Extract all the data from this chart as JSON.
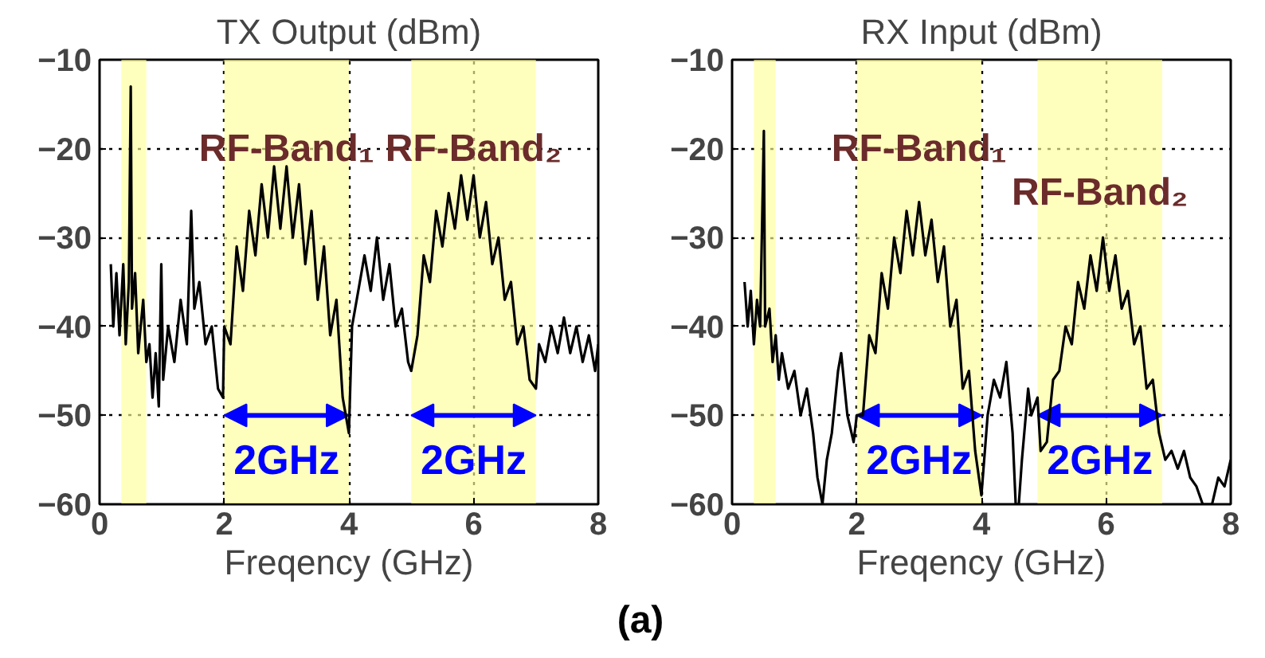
{
  "chart_data": [
    {
      "type": "line",
      "title": "TX Output (dBm)",
      "xlabel": "Freqency (GHz)",
      "xlim": [
        0,
        8
      ],
      "ylim": [
        -60,
        -10
      ],
      "xticks": [
        0,
        2,
        4,
        6,
        8
      ],
      "yticks": [
        -60,
        -50,
        -40,
        -30,
        -20,
        -10
      ],
      "grid": true,
      "marker": "none",
      "line_style": "solid",
      "series": [
        {
          "color": "#000000",
          "x": [
            0.18,
            0.22,
            0.27,
            0.32,
            0.38,
            0.42,
            0.47,
            0.5,
            0.52,
            0.57,
            0.62,
            0.7,
            0.75,
            0.8,
            0.85,
            0.9,
            0.95,
            0.99,
            1.02,
            1.1,
            1.2,
            1.3,
            1.4,
            1.47,
            1.52,
            1.6,
            1.7,
            1.8,
            1.9,
            1.98,
            2.0,
            2.1,
            2.2,
            2.3,
            2.4,
            2.5,
            2.6,
            2.7,
            2.8,
            2.9,
            3.0,
            3.1,
            3.2,
            3.3,
            3.4,
            3.5,
            3.6,
            3.7,
            3.8,
            3.9,
            4.0,
            4.05,
            4.15,
            4.25,
            4.35,
            4.45,
            4.55,
            4.65,
            4.75,
            4.85,
            4.95,
            5.0,
            5.1,
            5.2,
            5.3,
            5.4,
            5.5,
            5.6,
            5.7,
            5.8,
            5.9,
            6.0,
            6.1,
            6.2,
            6.3,
            6.4,
            6.5,
            6.6,
            6.7,
            6.8,
            6.9,
            7.0,
            7.05,
            7.15,
            7.25,
            7.35,
            7.45,
            7.55,
            7.65,
            7.75,
            7.85,
            7.95,
            8.0
          ],
          "values": [
            -33,
            -40,
            -34,
            -41,
            -33,
            -42,
            -35,
            -13,
            -38,
            -34,
            -43,
            -37,
            -44,
            -42,
            -48,
            -43,
            -49,
            -33,
            -46,
            -40,
            -44,
            -37,
            -42,
            -27,
            -38,
            -35,
            -42,
            -40,
            -47,
            -48,
            -40,
            -42,
            -31,
            -36,
            -27,
            -32,
            -24,
            -30,
            -22,
            -29,
            -22,
            -30,
            -24,
            -33,
            -27,
            -37,
            -31,
            -41,
            -37,
            -48,
            -52,
            -40,
            -36,
            -32,
            -36,
            -30,
            -37,
            -33,
            -40,
            -38,
            -44,
            -45,
            -41,
            -32,
            -35,
            -27,
            -31,
            -25,
            -29,
            -23,
            -28,
            -23,
            -30,
            -26,
            -33,
            -30,
            -37,
            -35,
            -42,
            -40,
            -46,
            -47,
            -42,
            -44,
            -40,
            -43,
            -39,
            -43,
            -40,
            -44,
            -41,
            -45,
            -42
          ]
        }
      ],
      "bands": [
        {
          "axis": "x",
          "from": 0.35,
          "to": 0.75,
          "color": "#ffff99"
        },
        {
          "axis": "x",
          "from": 2,
          "to": 4,
          "color": "#ffff99",
          "label": "2GHz"
        },
        {
          "axis": "x",
          "from": 5,
          "to": 7,
          "color": "#ffff99",
          "label": "2GHz"
        }
      ],
      "annotations": [
        "RF-Band₁",
        "RF-Band₂",
        "(a)"
      ]
    },
    {
      "type": "line",
      "title": "RX Input (dBm)",
      "xlabel": "Freqency (GHz)",
      "xlim": [
        0,
        8
      ],
      "ylim": [
        -60,
        -10
      ],
      "xticks": [
        0,
        2,
        4,
        6,
        8
      ],
      "yticks": [
        -60,
        -50,
        -40,
        -30,
        -20,
        -10
      ],
      "grid": true,
      "marker": "none",
      "line_style": "solid",
      "series": [
        {
          "color": "#000000",
          "x": [
            0.2,
            0.25,
            0.3,
            0.35,
            0.4,
            0.45,
            0.51,
            0.53,
            0.6,
            0.65,
            0.7,
            0.75,
            0.8,
            0.9,
            1.0,
            1.1,
            1.2,
            1.3,
            1.37,
            1.45,
            1.52,
            1.6,
            1.7,
            1.75,
            1.85,
            1.95,
            2.0,
            2.1,
            2.2,
            2.3,
            2.4,
            2.5,
            2.6,
            2.7,
            2.8,
            2.9,
            3.0,
            3.1,
            3.2,
            3.3,
            3.4,
            3.5,
            3.6,
            3.7,
            3.8,
            3.9,
            4.0,
            4.1,
            4.2,
            4.3,
            4.4,
            4.5,
            4.55,
            4.6,
            4.65,
            4.75,
            4.8,
            4.9,
            4.95,
            5.05,
            5.15,
            5.25,
            5.35,
            5.45,
            5.55,
            5.65,
            5.75,
            5.85,
            5.95,
            6.05,
            6.15,
            6.25,
            6.35,
            6.45,
            6.55,
            6.65,
            6.75,
            6.85,
            6.95,
            7.05,
            7.15,
            7.25,
            7.35,
            7.45,
            7.55,
            7.6,
            7.7,
            7.8,
            7.9,
            8.0
          ],
          "values": [
            -35,
            -40,
            -36,
            -42,
            -37,
            -40,
            -18,
            -40,
            -38,
            -44,
            -41,
            -46,
            -43,
            -47,
            -45,
            -50,
            -47,
            -52,
            -57,
            -60,
            -55,
            -52,
            -45,
            -43,
            -50,
            -53,
            -50,
            -50,
            -41,
            -43,
            -34,
            -38,
            -30,
            -34,
            -27,
            -32,
            -26,
            -32,
            -28,
            -35,
            -31,
            -40,
            -37,
            -47,
            -45,
            -54,
            -59,
            -50,
            -46,
            -48,
            -44,
            -52,
            -60,
            -60,
            -55,
            -47,
            -50,
            -48,
            -54,
            -53,
            -46,
            -45,
            -40,
            -42,
            -35,
            -38,
            -32,
            -36,
            -30,
            -36,
            -32,
            -38,
            -36,
            -42,
            -40,
            -47,
            -46,
            -52,
            -55,
            -54,
            -56,
            -54,
            -57,
            -58,
            -60,
            -60,
            -60,
            -57,
            -58,
            -55
          ]
        }
      ],
      "bands": [
        {
          "axis": "x",
          "from": 0.35,
          "to": 0.7,
          "color": "#ffff99"
        },
        {
          "axis": "x",
          "from": 2,
          "to": 4,
          "color": "#ffff99",
          "label": "2GHz"
        },
        {
          "axis": "x",
          "from": 4.9,
          "to": 6.9,
          "color": "#ffff99",
          "label": "2GHz"
        }
      ],
      "annotations": [
        "RF-Band₁",
        "RF-Band₂"
      ]
    }
  ]
}
